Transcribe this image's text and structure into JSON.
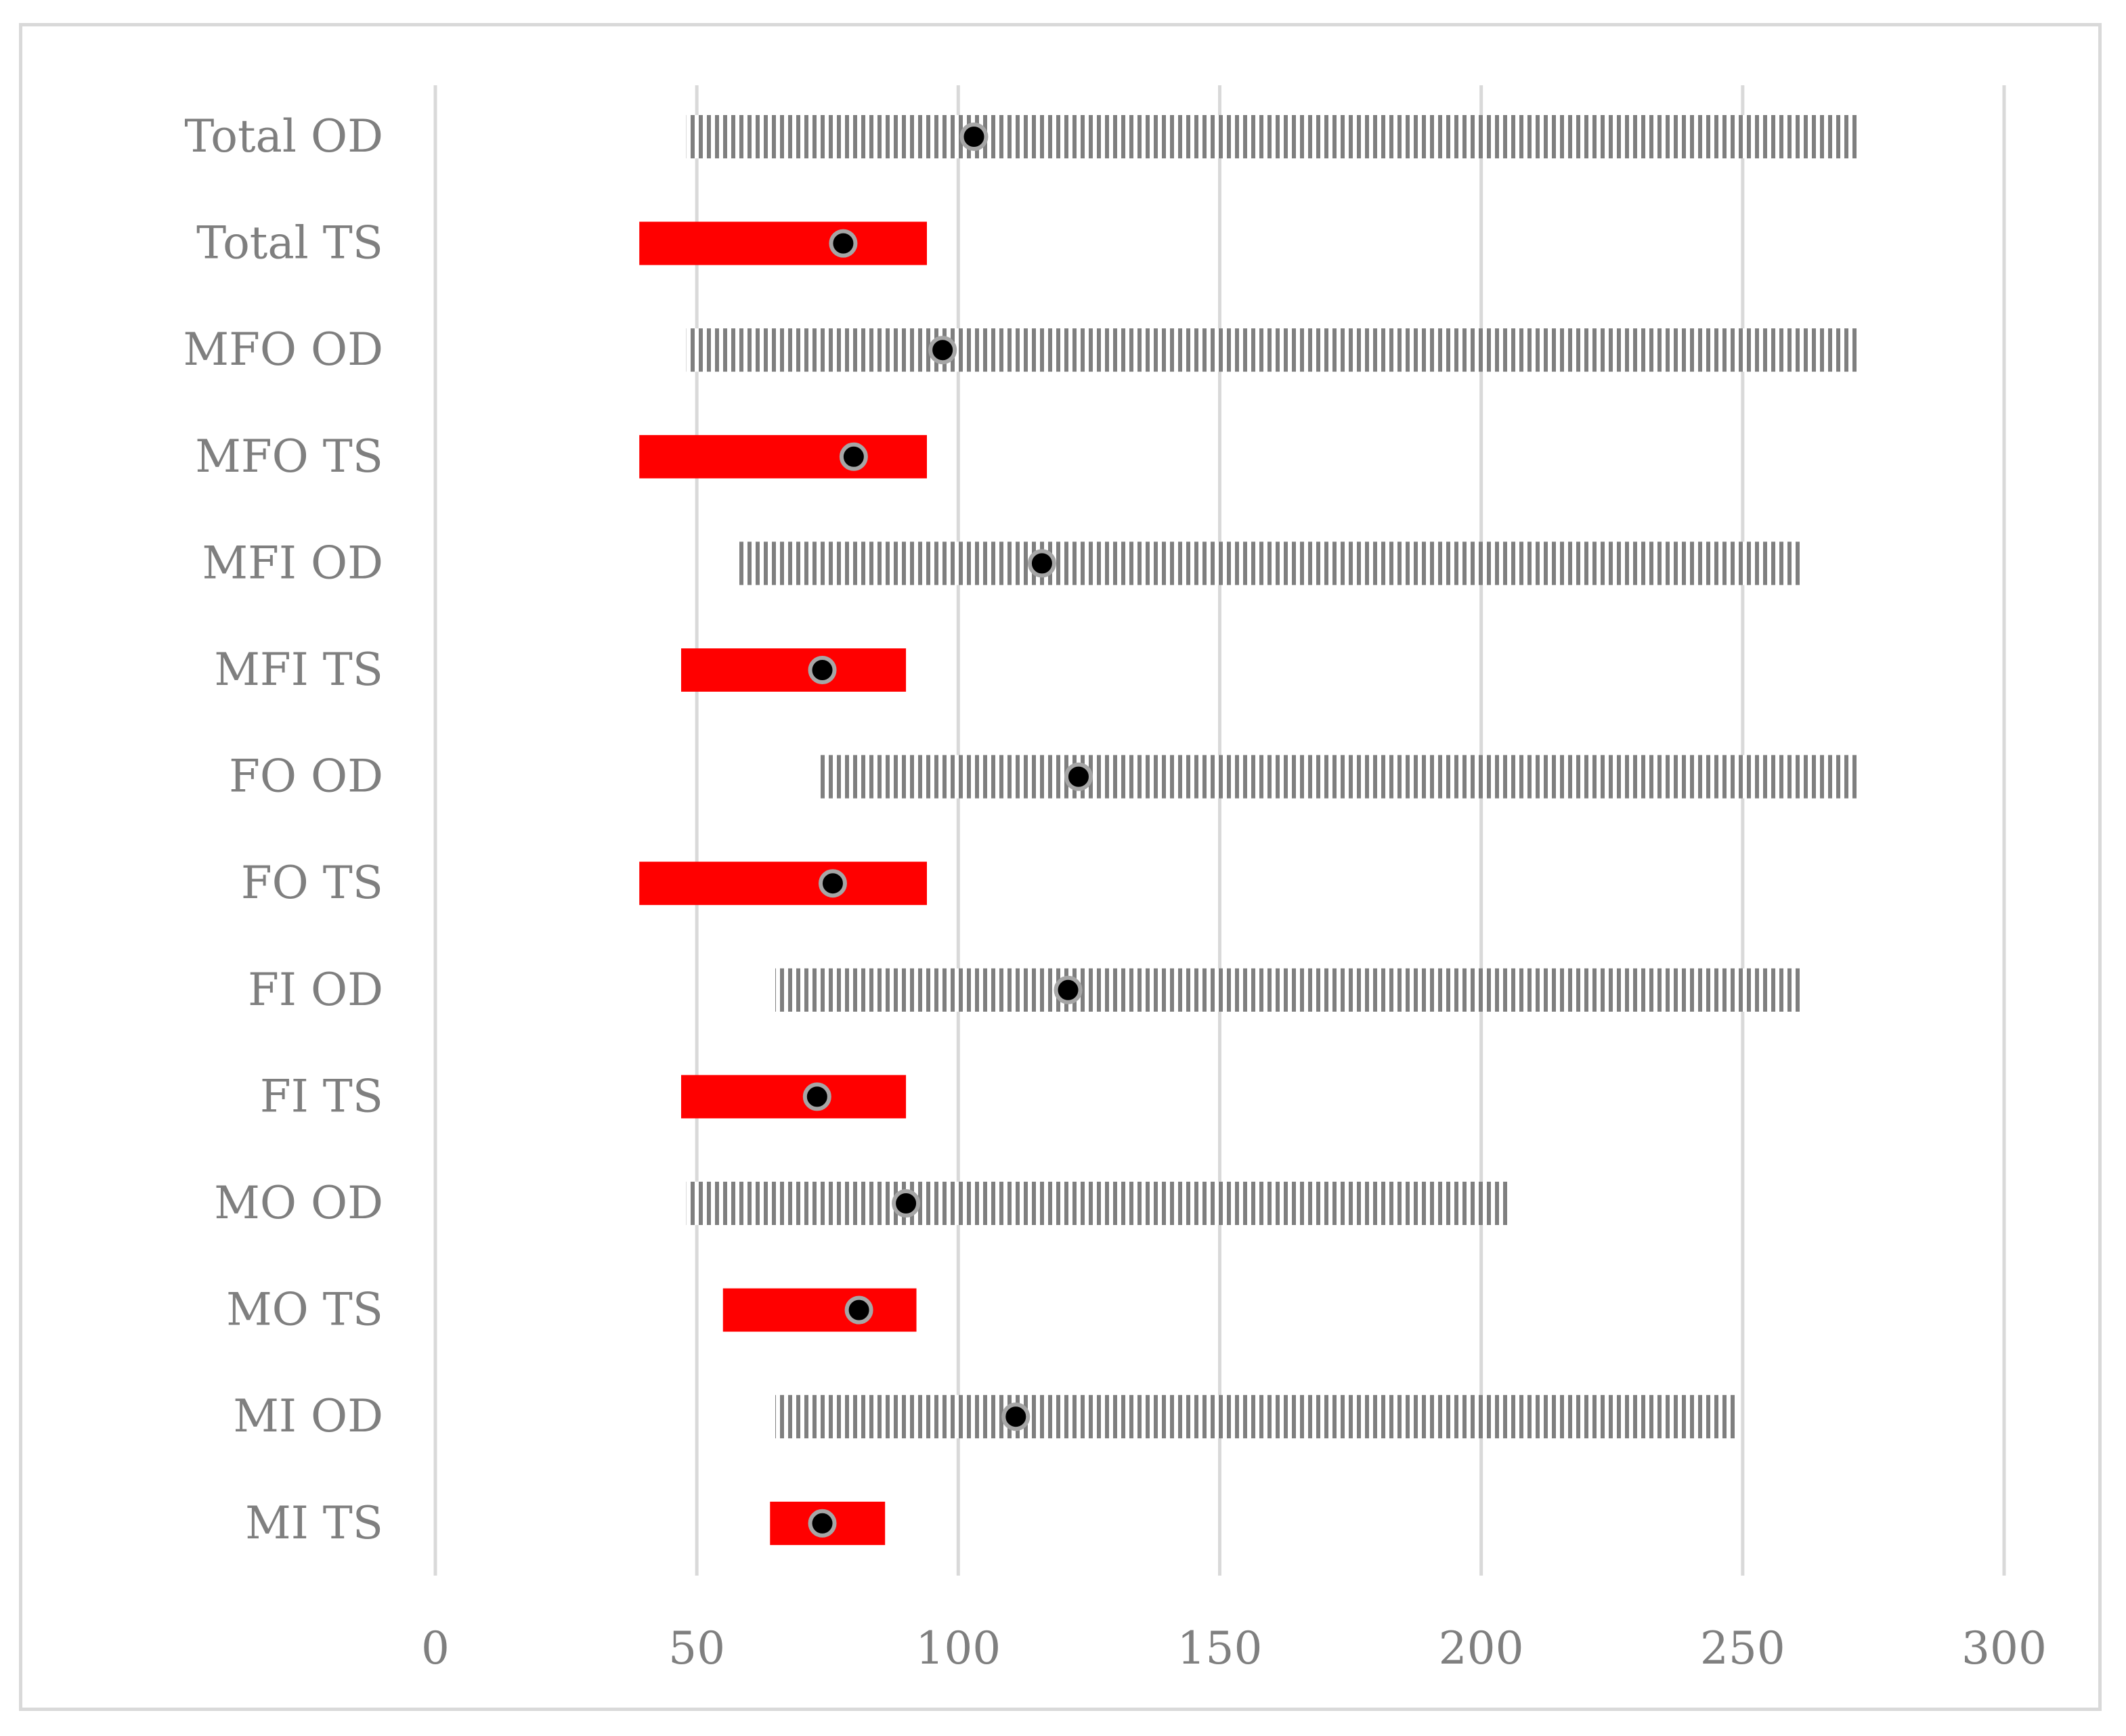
{
  "chart_data": {
    "type": "bar",
    "orientation": "horizontal",
    "title": "",
    "xlabel": "",
    "ylabel": "",
    "xlim": [
      0,
      300
    ],
    "x_ticks": [
      0,
      50,
      100,
      150,
      200,
      250,
      300
    ],
    "grid": "vertical",
    "legend": "none",
    "categories": [
      "Total OD",
      "Total TS",
      "MFO OD",
      "MFO TS",
      "MFI OD",
      "MFI TS",
      "FO OD",
      "FO TS",
      "FI OD",
      "FI TS",
      "MO OD",
      "MO TS",
      "MI OD",
      "MI TS"
    ],
    "ranges": [
      {
        "start": 48,
        "end": 272,
        "marker": 103
      },
      {
        "start": 39,
        "end": 94,
        "marker": 78
      },
      {
        "start": 48,
        "end": 272,
        "marker": 97
      },
      {
        "start": 39,
        "end": 94,
        "marker": 80
      },
      {
        "start": 58,
        "end": 261,
        "marker": 116
      },
      {
        "start": 47,
        "end": 90,
        "marker": 74
      },
      {
        "start": 73,
        "end": 272,
        "marker": 123
      },
      {
        "start": 39,
        "end": 94,
        "marker": 76
      },
      {
        "start": 65,
        "end": 261,
        "marker": 121
      },
      {
        "start": 47,
        "end": 90,
        "marker": 73
      },
      {
        "start": 48,
        "end": 205,
        "marker": 90
      },
      {
        "start": 55,
        "end": 92,
        "marker": 81
      },
      {
        "start": 65,
        "end": 249,
        "marker": 111
      },
      {
        "start": 64,
        "end": 86,
        "marker": 74
      }
    ],
    "colors": {
      "od_bar": "#7f7f7f",
      "ts_bar": "#ff0000",
      "marker_fill": "#000000",
      "marker_stroke": "#a6a6a6",
      "grid": "#d9d9d9",
      "text": "#7f7f7f"
    }
  }
}
